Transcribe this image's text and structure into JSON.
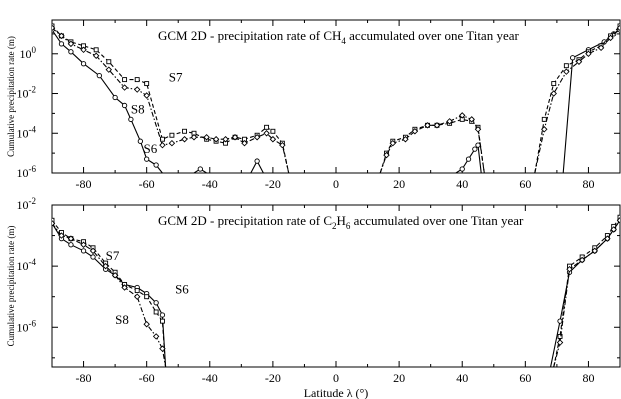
{
  "chart_data": [
    {
      "type": "line",
      "title_pre": "GCM 2D - precipitation rate of CH",
      "title_sub": "4",
      "title_post": " accumulated over one Titan year",
      "ylabel": "Cumulative precipitation rate (m)",
      "xlabel": "",
      "xlim": [
        -90,
        90
      ],
      "ylim_log10": [
        -6,
        1.7
      ],
      "yscale": "log",
      "xticks": [
        "-80",
        "-60",
        "-40",
        "-20",
        "0",
        "20",
        "40",
        "60",
        "80"
      ],
      "xtick_values": [
        -80,
        -60,
        -40,
        -20,
        0,
        20,
        40,
        60,
        80
      ],
      "yticks_base": [
        "10",
        "10",
        "10",
        "10"
      ],
      "yticks_exp": [
        "0",
        "-2",
        "-4",
        "-6"
      ],
      "ytick_values": [
        0,
        -2,
        -4,
        -6
      ],
      "series": [
        {
          "name": "S6",
          "label_pos": {
            "x": -61,
            "y": -5.0
          },
          "segments": [
            [
              [
                -90,
                1.2
              ],
              [
                -87,
                0.5
              ],
              [
                -84,
                0.1
              ],
              [
                -80,
                -0.5
              ],
              [
                -75,
                -1.1
              ],
              [
                -70,
                -2.2
              ],
              [
                -67,
                -2.6
              ],
              [
                -65,
                -3.3
              ],
              [
                -62,
                -4.4
              ],
              [
                -60,
                -5.3
              ],
              [
                -57,
                -5.6
              ],
              [
                -55,
                -6
              ]
            ],
            [
              [
                -45,
                -6
              ],
              [
                -43,
                -5.8
              ],
              [
                -41,
                -6
              ]
            ],
            [
              [
                -27,
                -6
              ],
              [
                -25,
                -5.4
              ],
              [
                -23,
                -6
              ]
            ],
            [
              [
                38,
                -6
              ],
              [
                40,
                -5.8
              ],
              [
                42,
                -5.3
              ],
              [
                44,
                -4.8
              ],
              [
                45,
                -4.6
              ],
              [
                46,
                -6
              ]
            ],
            [
              [
                72,
                -6
              ],
              [
                75,
                -0.2
              ],
              [
                80,
                0.2
              ],
              [
                85,
                0.6
              ],
              [
                88,
                1.0
              ],
              [
                90,
                1.2
              ]
            ]
          ]
        },
        {
          "name": "S7",
          "label_pos": {
            "x": -53,
            "y": -1.4
          },
          "segments": [
            [
              [
                -90,
                1.4
              ],
              [
                -87,
                0.9
              ],
              [
                -84,
                0.6
              ],
              [
                -80,
                0.4
              ],
              [
                -76,
                0.2
              ],
              [
                -72,
                -0.4
              ],
              [
                -67,
                -1.3
              ],
              [
                -63,
                -1.3
              ],
              [
                -60,
                -1.5
              ],
              [
                -55,
                -4.3
              ],
              [
                -52,
                -4.1
              ],
              [
                -48,
                -3.9
              ],
              [
                -45,
                -4.0
              ],
              [
                -41,
                -4.3
              ],
              [
                -38,
                -4.4
              ],
              [
                -35,
                -4.5
              ],
              [
                -32,
                -4.2
              ],
              [
                -29,
                -4.3
              ],
              [
                -25,
                -4.1
              ],
              [
                -22,
                -3.7
              ],
              [
                -20,
                -3.9
              ],
              [
                -17,
                -4.5
              ],
              [
                -15,
                -6
              ]
            ],
            [
              [
                14,
                -6
              ],
              [
                16,
                -5.0
              ],
              [
                18,
                -4.4
              ],
              [
                22,
                -4.2
              ],
              [
                25,
                -3.8
              ],
              [
                29,
                -3.6
              ],
              [
                32,
                -3.6
              ],
              [
                36,
                -3.5
              ],
              [
                40,
                -3.3
              ],
              [
                43,
                -3.4
              ],
              [
                45,
                -3.7
              ],
              [
                47,
                -6
              ]
            ],
            [
              [
                63,
                -6
              ],
              [
                66,
                -3.3
              ],
              [
                69,
                -1.5
              ],
              [
                73,
                -0.6
              ],
              [
                77,
                -0.3
              ],
              [
                80,
                0.1
              ],
              [
                84,
                0.4
              ],
              [
                87,
                0.9
              ],
              [
                90,
                1.4
              ]
            ]
          ]
        },
        {
          "name": "S8",
          "label_pos": {
            "x": -65,
            "y": -3.0
          },
          "segments": [
            [
              [
                -90,
                1.3
              ],
              [
                -87,
                0.9
              ],
              [
                -84,
                0.5
              ],
              [
                -80,
                0.2
              ],
              [
                -76,
                -0.1
              ],
              [
                -72,
                -0.8
              ],
              [
                -67,
                -1.7
              ],
              [
                -63,
                -1.8
              ],
              [
                -60,
                -2.1
              ],
              [
                -55,
                -4.6
              ],
              [
                -52,
                -4.5
              ],
              [
                -48,
                -4.3
              ],
              [
                -45,
                -4.2
              ],
              [
                -41,
                -4.2
              ],
              [
                -38,
                -4.3
              ],
              [
                -35,
                -4.3
              ],
              [
                -32,
                -4.2
              ],
              [
                -29,
                -4.5
              ],
              [
                -25,
                -4.2
              ],
              [
                -22,
                -4.0
              ],
              [
                -20,
                -4.3
              ],
              [
                -17,
                -4.6
              ],
              [
                -15,
                -6
              ]
            ],
            [
              [
                14,
                -6
              ],
              [
                16,
                -5.1
              ],
              [
                18,
                -4.5
              ],
              [
                22,
                -4.3
              ],
              [
                25,
                -3.9
              ],
              [
                29,
                -3.6
              ],
              [
                32,
                -3.6
              ],
              [
                36,
                -3.4
              ],
              [
                40,
                -3.1
              ],
              [
                43,
                -3.3
              ],
              [
                45,
                -3.8
              ],
              [
                47,
                -6
              ]
            ],
            [
              [
                63,
                -6
              ],
              [
                66,
                -3.8
              ],
              [
                69,
                -2.0
              ],
              [
                73,
                -0.9
              ],
              [
                77,
                -0.4
              ],
              [
                80,
                0.0
              ],
              [
                84,
                0.3
              ],
              [
                87,
                0.8
              ],
              [
                90,
                1.3
              ]
            ]
          ]
        }
      ]
    },
    {
      "type": "line",
      "title_pre": "GCM 2D - precipitation rate of C",
      "title_sub": "2",
      "title_mid": "H",
      "title_sub2": "6",
      "title_post": " accumulated over one Titan year",
      "ylabel": "Cumulative precipitation rate (m)",
      "xlabel": "Latitude λ (°)",
      "xlim": [
        -90,
        90
      ],
      "ylim_log10": [
        -7.3,
        -2
      ],
      "yscale": "log",
      "xticks": [
        "-80",
        "-60",
        "-40",
        "-20",
        "0",
        "20",
        "40",
        "60",
        "80"
      ],
      "xtick_values": [
        -80,
        -60,
        -40,
        -20,
        0,
        20,
        40,
        60,
        80
      ],
      "yticks_base": [
        "10",
        "10",
        "10"
      ],
      "yticks_exp": [
        "-2",
        "-4",
        "-6"
      ],
      "ytick_values": [
        -2,
        -4,
        -6
      ],
      "series": [
        {
          "name": "S6",
          "label_pos": {
            "x": -51,
            "y": -4.9
          },
          "segments": [
            [
              [
                -90,
                -2.6
              ],
              [
                -87,
                -3.1
              ],
              [
                -84,
                -3.3
              ],
              [
                -80,
                -3.5
              ],
              [
                -77,
                -3.7
              ],
              [
                -73,
                -4.1
              ],
              [
                -70,
                -4.3
              ],
              [
                -67,
                -4.6
              ],
              [
                -63,
                -4.7
              ],
              [
                -60,
                -4.9
              ],
              [
                -57,
                -5.2
              ],
              [
                -55,
                -5.6
              ],
              [
                -54,
                -7.3
              ]
            ],
            [
              [
                68,
                -7.3
              ],
              [
                71,
                -5.8
              ],
              [
                74,
                -4.2
              ],
              [
                78,
                -3.8
              ],
              [
                82,
                -3.5
              ],
              [
                86,
                -3.1
              ],
              [
                88,
                -2.8
              ],
              [
                90,
                -2.5
              ]
            ]
          ]
        },
        {
          "name": "S7",
          "label_pos": {
            "x": -73,
            "y": -3.8
          },
          "segments": [
            [
              [
                -90,
                -2.5
              ],
              [
                -87,
                -2.9
              ],
              [
                -84,
                -3.1
              ],
              [
                -80,
                -3.2
              ],
              [
                -77,
                -3.4
              ],
              [
                -73,
                -3.9
              ],
              [
                -70,
                -4.2
              ],
              [
                -67,
                -4.6
              ],
              [
                -63,
                -4.8
              ],
              [
                -60,
                -5.0
              ],
              [
                -57,
                -5.5
              ],
              [
                -55,
                -5.8
              ],
              [
                -54,
                -7.3
              ]
            ],
            [
              [
                69,
                -7.3
              ],
              [
                71,
                -6.3
              ],
              [
                74,
                -4.0
              ],
              [
                78,
                -3.7
              ],
              [
                82,
                -3.4
              ],
              [
                86,
                -3.0
              ],
              [
                88,
                -2.7
              ],
              [
                90,
                -2.4
              ]
            ]
          ]
        },
        {
          "name": "S8",
          "label_pos": {
            "x": -70,
            "y": -5.9
          },
          "segments": [
            [
              [
                -90,
                -2.6
              ],
              [
                -87,
                -3.0
              ],
              [
                -84,
                -3.1
              ],
              [
                -80,
                -3.3
              ],
              [
                -77,
                -3.5
              ],
              [
                -73,
                -4.0
              ],
              [
                -70,
                -4.3
              ],
              [
                -67,
                -4.7
              ],
              [
                -63,
                -5.0
              ],
              [
                -60,
                -5.9
              ],
              [
                -57,
                -6.3
              ],
              [
                -55,
                -6.7
              ],
              [
                -54,
                -7.3
              ]
            ],
            [
              [
                69,
                -7.3
              ],
              [
                71,
                -6.5
              ],
              [
                74,
                -4.1
              ],
              [
                78,
                -3.8
              ],
              [
                82,
                -3.5
              ],
              [
                86,
                -3.1
              ],
              [
                88,
                -2.8
              ],
              [
                90,
                -2.5
              ]
            ]
          ]
        }
      ]
    }
  ]
}
